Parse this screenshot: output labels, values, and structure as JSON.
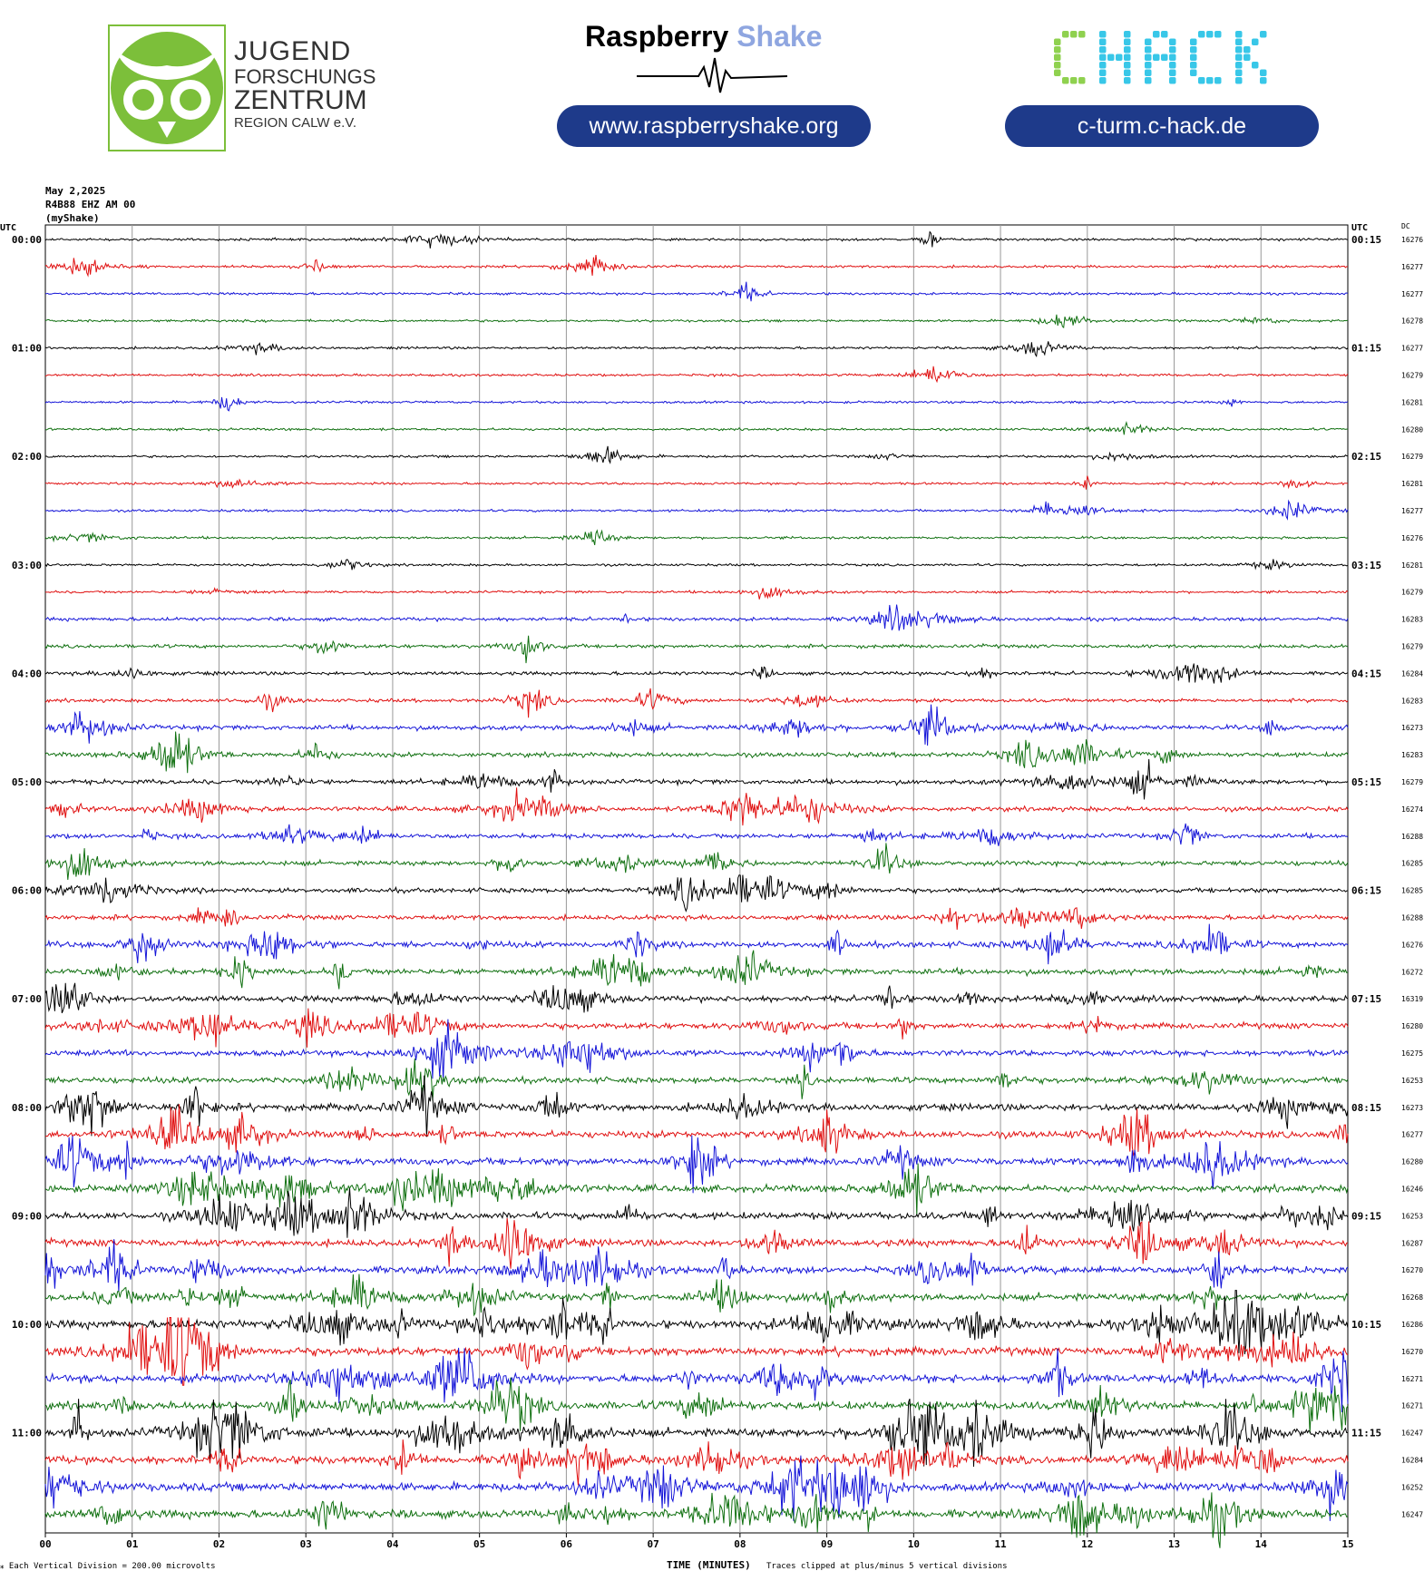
{
  "header": {
    "jfz": {
      "line1": "JUGEND",
      "line2": "FORSCHUNGS",
      "line3": "ZENTRUM",
      "line4": "REGION CALW e.V."
    },
    "rs": {
      "part1": "Raspberry",
      "part2": "Shake",
      "url": "www.raspberryshake.org"
    },
    "chack": {
      "logo": "CHACK",
      "url": "c-turm.c-hack.de"
    }
  },
  "meta": {
    "date": "May 2,2025",
    "station": "R4B88 EHZ AM 00",
    "source": "(myShake)"
  },
  "chart_data": {
    "type": "helicorder",
    "xlabel": "TIME (MINUTES)",
    "x_ticks": [
      "00",
      "01",
      "02",
      "03",
      "04",
      "05",
      "06",
      "07",
      "08",
      "09",
      "10",
      "11",
      "12",
      "13",
      "14",
      "15"
    ],
    "xlim": [
      0,
      15
    ],
    "left_axis_label": "UTC",
    "right_axis_label": "UTC",
    "dc_label": "DC",
    "row_interval_minutes": 15,
    "left_time_labels": [
      "00:00",
      "01:00",
      "02:00",
      "03:00",
      "04:00",
      "05:00",
      "06:00",
      "07:00",
      "08:00",
      "09:00",
      "10:00",
      "11:00"
    ],
    "right_time_labels": [
      "00:15",
      "01:15",
      "02:15",
      "03:15",
      "04:15",
      "05:15",
      "06:15",
      "07:15",
      "08:15",
      "09:15",
      "10:15",
      "11:15"
    ],
    "trace_colors": [
      "#000000",
      "#e01010",
      "#1515d8",
      "#107010"
    ],
    "dc_offsets": [
      16276,
      16277,
      16277,
      16278,
      16277,
      16279,
      16281,
      16280,
      16279,
      16281,
      16277,
      16276,
      16281,
      16279,
      16283,
      16279,
      16284,
      16283,
      16273,
      16283,
      16279,
      16274,
      16288,
      16285,
      16285,
      16288,
      16276,
      16272,
      16319,
      16280,
      16275,
      16253,
      16273,
      16277,
      16280,
      16246,
      16253,
      16287,
      16270,
      16268,
      16286,
      16270,
      16271,
      16271,
      16247,
      16284,
      16252,
      16247
    ],
    "activity_level": [
      1,
      1,
      1,
      1,
      1,
      1,
      1,
      1,
      1,
      1,
      1,
      1,
      1,
      1,
      2,
      2,
      2,
      2,
      3,
      3,
      3,
      3,
      3,
      3,
      3,
      3,
      4,
      4,
      4,
      4,
      4,
      4,
      5,
      5,
      5,
      5,
      5,
      5,
      5,
      5,
      6,
      6,
      6,
      6,
      6,
      6,
      6,
      6
    ],
    "footer_left": "Each Vertical Division = 200.00 microvolts",
    "footer_right": "Traces clipped at plus/minus 5 vertical divisions"
  }
}
